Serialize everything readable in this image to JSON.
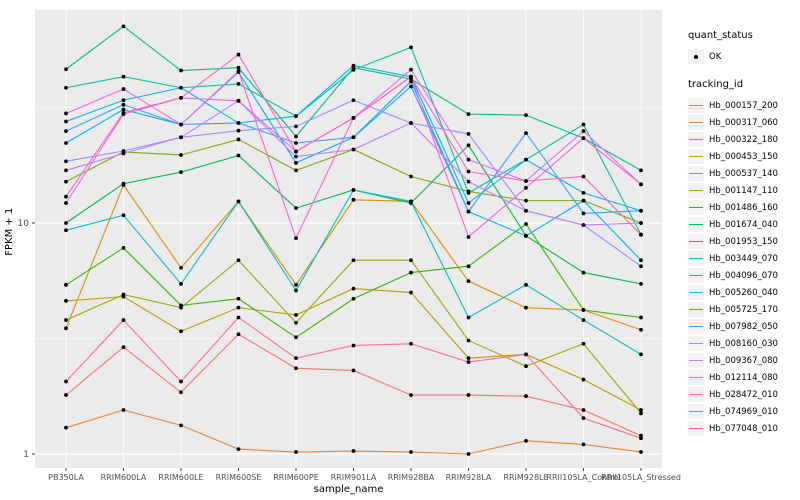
{
  "chart_data": {
    "type": "line",
    "title": "",
    "xlabel": "sample_name",
    "ylabel": "FPKM + 1",
    "y_scale": "log10",
    "y_ticks": [
      1,
      10
    ],
    "y_minor_ticks": [
      3.1623,
      31.623
    ],
    "ylim": [
      0.93,
      84
    ],
    "grid": "on",
    "panel_bg": "#EBEBEB",
    "gridline_color": "#FFFFFF",
    "point_color": "#000000",
    "tick_label_color": "#4D4D4D",
    "legend_position": "right",
    "categories": [
      "PB350LA",
      "RRIM600LA",
      "RRIM600LE",
      "RRIM600SE",
      "RRIM600PE",
      "RRIM901LA",
      "RRIM928BA",
      "RRIM928LA",
      "RRIM928LE",
      "RRII105LA_Control",
      "RRII105LA_Stressed"
    ],
    "series": [
      {
        "name": "Hb_000157_200",
        "color": "#F8766D",
        "values": [
          1.8,
          2.9,
          1.85,
          3.3,
          2.35,
          2.3,
          1.8,
          1.8,
          1.78,
          1.55,
          1.2
        ]
      },
      {
        "name": "Hb_000317_060",
        "color": "#EA8331",
        "values": [
          1.3,
          1.55,
          1.33,
          1.05,
          1.02,
          1.03,
          1.02,
          1.0,
          1.14,
          1.1,
          1.02
        ]
      },
      {
        "name": "Hb_000322_180",
        "color": "#D89000",
        "values": [
          3.5,
          14.6,
          6.4,
          12.4,
          5.4,
          12.6,
          12.4,
          5.6,
          4.3,
          4.2,
          3.45
        ]
      },
      {
        "name": "Hb_000453_150",
        "color": "#C09B00",
        "values": [
          4.6,
          4.8,
          3.4,
          4.3,
          4.0,
          5.2,
          5.0,
          2.6,
          2.7,
          2.1,
          1.55
        ]
      },
      {
        "name": "Hb_000537_140",
        "color": "#A3A500",
        "values": [
          3.8,
          4.9,
          4.3,
          6.9,
          3.7,
          6.9,
          6.9,
          3.1,
          2.4,
          3.0,
          1.5
        ]
      },
      {
        "name": "Hb_001147_110",
        "color": "#7CAE00",
        "values": [
          15.1,
          20.3,
          19.7,
          23.0,
          16.9,
          20.8,
          15.9,
          13.7,
          12.5,
          12.5,
          10.0
        ]
      },
      {
        "name": "Hb_001486_160",
        "color": "#39B600",
        "values": [
          5.4,
          7.8,
          4.4,
          4.7,
          3.2,
          4.7,
          6.1,
          6.5,
          9.9,
          4.2,
          3.9
        ]
      },
      {
        "name": "Hb_001674_040",
        "color": "#00BB4E",
        "values": [
          10.0,
          14.8,
          16.6,
          19.6,
          11.6,
          13.9,
          12.2,
          21.7,
          8.8,
          6.1,
          5.45
        ]
      },
      {
        "name": "Hb_001953_150",
        "color": "#00BF7D",
        "values": [
          46.3,
          71.0,
          45.7,
          47.0,
          23.7,
          47.0,
          42.0,
          29.6,
          29.3,
          23.3,
          16.9
        ]
      },
      {
        "name": "Hb_003449_070",
        "color": "#00C1A3",
        "values": [
          38.5,
          43.0,
          38.5,
          40.0,
          29.0,
          46.0,
          57.6,
          13.5,
          18.8,
          26.7,
          8.9
        ]
      },
      {
        "name": "Hb_004096_070",
        "color": "#00BFC4",
        "values": [
          9.3,
          10.8,
          5.45,
          12.4,
          5.1,
          13.9,
          12.4,
          3.9,
          5.4,
          3.8,
          2.7
        ]
      },
      {
        "name": "Hb_005260_040",
        "color": "#00BAE0",
        "values": [
          27.5,
          34.0,
          38.5,
          27.1,
          29.0,
          48.0,
          43.0,
          12.2,
          18.8,
          13.5,
          11.3
        ]
      },
      {
        "name": "Hb_005725_170",
        "color": "#00B0F6",
        "values": [
          22.2,
          31.0,
          26.7,
          45.0,
          18.2,
          23.5,
          41.0,
          11.2,
          8.8,
          12.5,
          6.9
        ]
      },
      {
        "name": "Hb_007982_050",
        "color": "#35A2FF",
        "values": [
          25.0,
          32.5,
          26.7,
          27.1,
          22.2,
          23.5,
          39.0,
          11.2,
          24.5,
          11.0,
          11.3
        ]
      },
      {
        "name": "Hb_008160_030",
        "color": "#9590FF",
        "values": [
          18.5,
          20.5,
          23.5,
          25.1,
          26.2,
          34.0,
          27.1,
          24.3,
          11.3,
          9.8,
          6.5
        ]
      },
      {
        "name": "Hb_009367_080",
        "color": "#C77CFF",
        "values": [
          16.9,
          20.0,
          23.5,
          33.8,
          19.4,
          20.8,
          27.1,
          15.1,
          11.3,
          9.8,
          10.0
        ]
      },
      {
        "name": "Hb_012114_080",
        "color": "#E76BF3",
        "values": [
          12.2,
          29.6,
          34.8,
          33.8,
          20.4,
          28.5,
          46.1,
          18.8,
          15.2,
          25.0,
          14.7
        ]
      },
      {
        "name": "Hb_028472_010",
        "color": "#FA62DB",
        "values": [
          29.8,
          38.0,
          26.7,
          45.4,
          8.6,
          28.5,
          43.0,
          8.7,
          14.2,
          23.3,
          14.7
        ]
      },
      {
        "name": "Hb_074969_010",
        "color": "#FF62BC",
        "values": [
          13.0,
          30.0,
          34.8,
          53.6,
          20.4,
          28.5,
          43.0,
          16.7,
          15.2,
          15.9,
          8.9
        ]
      },
      {
        "name": "Hb_077048_010",
        "color": "#FF6A98",
        "values": [
          2.06,
          3.8,
          2.06,
          3.9,
          2.6,
          2.95,
          3.0,
          2.5,
          2.7,
          1.43,
          1.17
        ]
      }
    ],
    "legend": {
      "quant_status_title": "quant_status",
      "quant_status_items": [
        "OK"
      ],
      "tracking_title": "tracking_id"
    }
  }
}
